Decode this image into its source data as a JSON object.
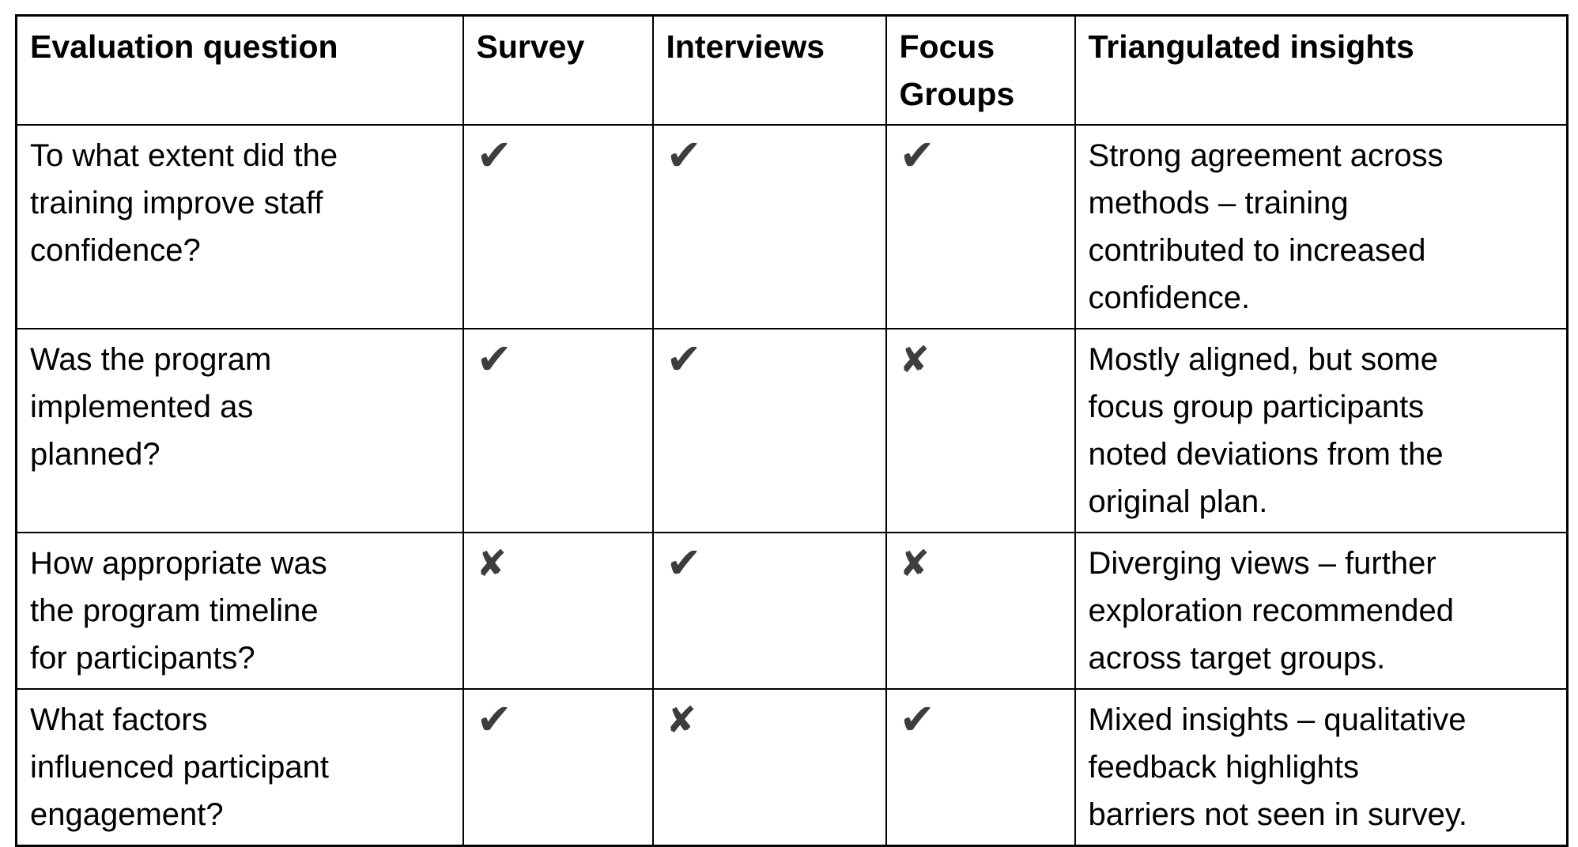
{
  "table": {
    "columns": [
      {
        "key": "question",
        "label": "Evaluation question"
      },
      {
        "key": "survey",
        "label": "Survey"
      },
      {
        "key": "interviews",
        "label": "Interviews"
      },
      {
        "key": "focus_groups",
        "label": "Focus Groups"
      },
      {
        "key": "insights",
        "label": "Triangulated insights"
      }
    ],
    "rows": [
      {
        "question": "To what extent did the\ntraining improve staff\nconfidence?",
        "survey": "check",
        "interviews": "check",
        "focus_groups": "check",
        "insights": "Strong agreement across\nmethods – training\ncontributed to increased\nconfidence."
      },
      {
        "question": "Was the program\nimplemented as\nplanned?",
        "survey": "check",
        "interviews": "check",
        "focus_groups": "cross",
        "insights": "Mostly aligned, but some\nfocus group participants\nnoted deviations from the\noriginal plan."
      },
      {
        "question": "How appropriate was\nthe program timeline\nfor participants?",
        "survey": "cross",
        "interviews": "check",
        "focus_groups": "cross",
        "insights": "Diverging views – further\nexploration recommended\nacross target groups."
      },
      {
        "question": "What factors\ninfluenced participant\nengagement?",
        "survey": "check",
        "interviews": "cross",
        "focus_groups": "check",
        "insights": "Mixed insights – qualitative\nfeedback highlights\nbarriers not seen in survey."
      }
    ],
    "symbols": {
      "check": "✔",
      "cross": "✘"
    },
    "colors": {
      "mark": "#3d3d3d",
      "border": "#000000",
      "text": "#000000",
      "background": "#ffffff"
    }
  }
}
